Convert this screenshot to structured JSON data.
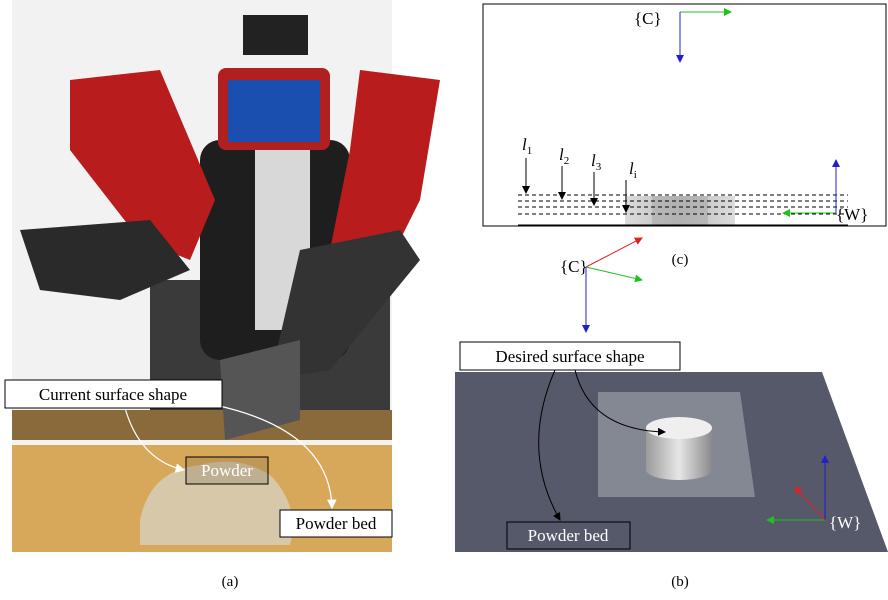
{
  "panel_a": {
    "labels": {
      "current": "Current surface shape",
      "powder": "Powder",
      "powder_bed": "Powder bed"
    },
    "caption": "(a)"
  },
  "panel_b": {
    "frame_c": "{C}",
    "desired": "Desired surface shape",
    "powder_bed": "Powder bed",
    "frame_w": "{W}",
    "caption": "(b)"
  },
  "panel_c": {
    "frame_c": "{C}",
    "frame_w": "{W}",
    "lines": [
      {
        "base": "l",
        "sub": "1"
      },
      {
        "base": "l",
        "sub": "2"
      },
      {
        "base": "l",
        "sub": "3"
      },
      {
        "base": "l",
        "sub": "i"
      }
    ],
    "caption": "(c)"
  }
}
